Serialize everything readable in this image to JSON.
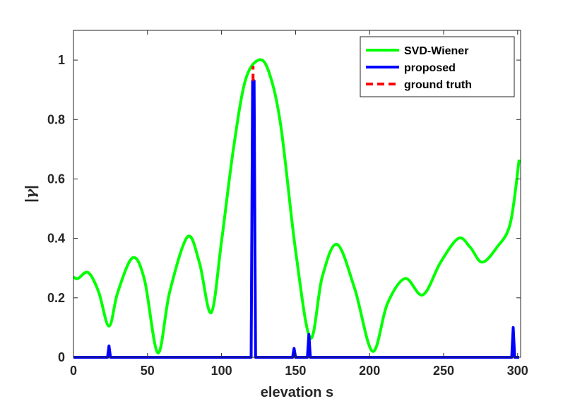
{
  "chart_data": {
    "type": "line",
    "title": "",
    "xlabel": "elevation s",
    "ylabel_prefix": "|",
    "ylabel_symbol": "γ",
    "ylabel_suffix": "|",
    "xlim": [
      0,
      302
    ],
    "ylim": [
      0,
      1.1
    ],
    "xticks": [
      0,
      50,
      100,
      150,
      200,
      250,
      300
    ],
    "yticks": [
      0,
      0.2,
      0.4,
      0.6,
      0.8,
      1
    ],
    "ytick_labels": [
      "0",
      "0.2",
      "0.4",
      "0.6",
      "0.8",
      "1"
    ],
    "grid": false,
    "legend_position": "top-right",
    "series": [
      {
        "name": "SVD-Wiener",
        "color": "#00ff00",
        "style": "solid",
        "x": [
          0,
          3,
          10,
          17,
          24,
          30,
          40,
          48,
          57,
          65,
          77,
          85,
          93,
          100,
          108,
          116,
          125,
          132,
          140,
          150,
          160,
          168,
          178,
          190,
          202,
          212,
          224,
          236,
          248,
          260,
          268,
          276,
          286,
          295,
          301
        ],
        "y": [
          0.27,
          0.265,
          0.285,
          0.22,
          0.105,
          0.22,
          0.335,
          0.26,
          0.015,
          0.22,
          0.405,
          0.32,
          0.15,
          0.39,
          0.7,
          0.93,
          1.0,
          0.96,
          0.78,
          0.36,
          0.065,
          0.27,
          0.38,
          0.23,
          0.02,
          0.18,
          0.265,
          0.21,
          0.32,
          0.4,
          0.37,
          0.32,
          0.37,
          0.45,
          0.665
        ]
      },
      {
        "name": "proposed",
        "color": "#0000ff",
        "style": "solid",
        "x": [
          0,
          23,
          24,
          25,
          120,
          121,
          122,
          123,
          148,
          149,
          150,
          158,
          159,
          160,
          296,
          297,
          298,
          301
        ],
        "y": [
          0,
          0,
          0.038,
          0,
          0,
          0.93,
          0.93,
          0,
          0,
          0.03,
          0,
          0,
          0.077,
          0,
          0,
          0.1,
          0,
          0
        ]
      },
      {
        "name": "ground truth",
        "color": "#ff0000",
        "style": "dashed",
        "x": [
          121.3,
          121.3
        ],
        "y": [
          0.93,
          0.98
        ]
      }
    ]
  }
}
